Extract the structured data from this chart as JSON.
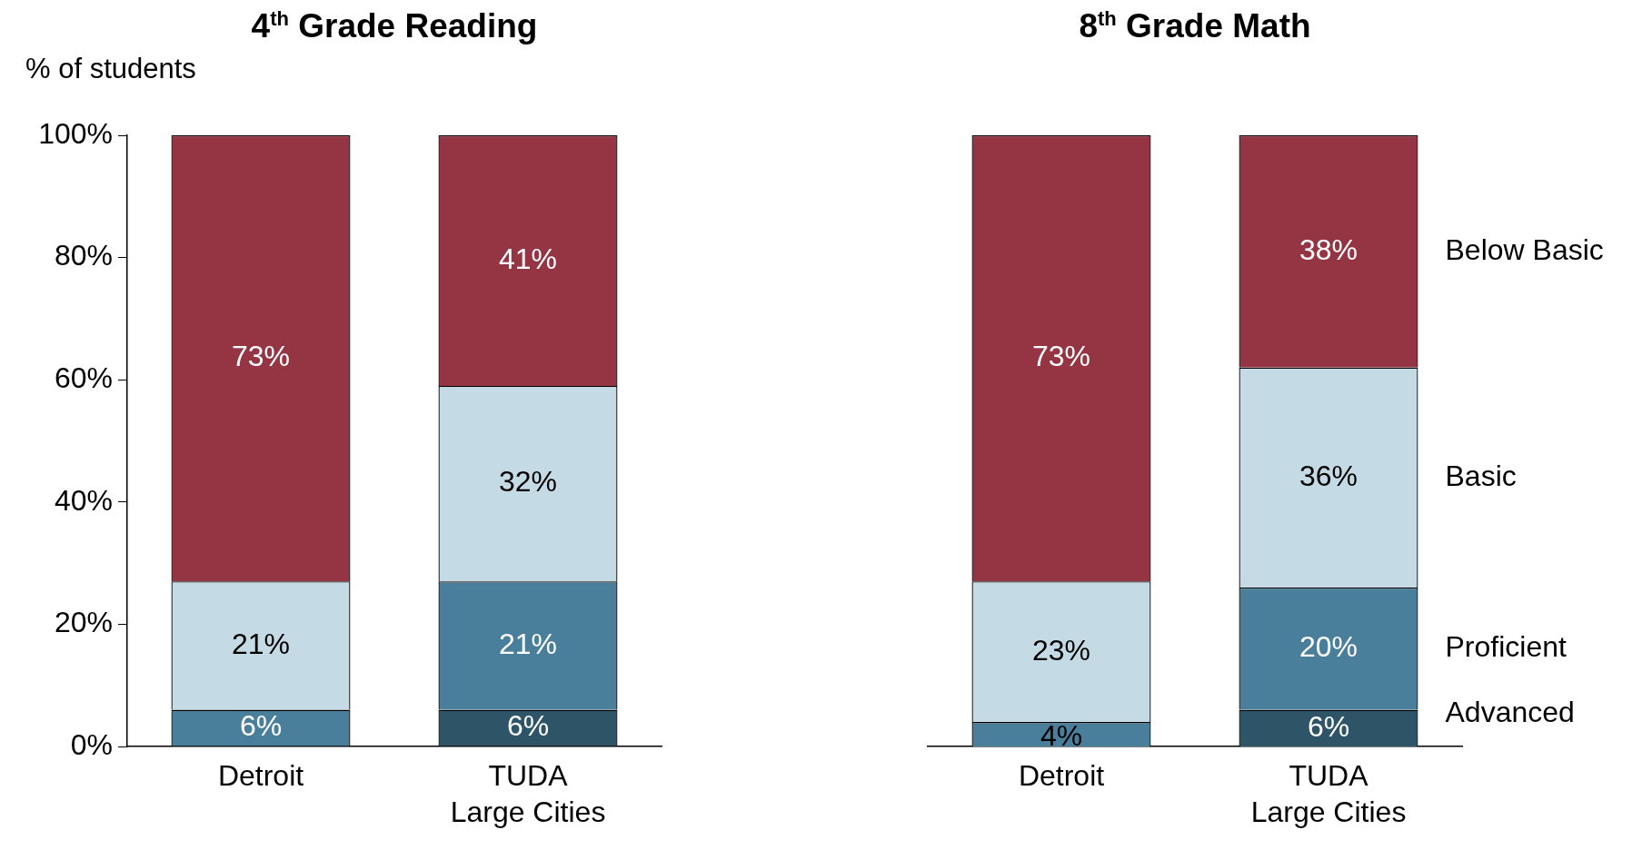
{
  "chart_data": [
    {
      "type": "bar",
      "title": "4$^{th}$ Grade Reading",
      "ylabel": "% of students",
      "categories": [
        "Detroit",
        "TUDA\nLarge Cities"
      ],
      "stacked": true,
      "grid": false,
      "ylim": [
        0,
        100
      ],
      "yticks": [
        {
          "value": 0,
          "label": "0%"
        },
        {
          "value": 20,
          "label": "20%"
        },
        {
          "value": 40,
          "label": "40%"
        },
        {
          "value": 60,
          "label": "60%"
        },
        {
          "value": 80,
          "label": "80%"
        },
        {
          "value": 100,
          "label": "100%"
        }
      ],
      "series": [
        {
          "color": "#2e5468",
          "values": [
            null,
            6
          ],
          "value_labels": [
            null,
            "6%"
          ]
        },
        {
          "color": "#4a7f9c",
          "values": [
            6,
            21
          ],
          "value_labels": [
            "6%",
            "21%"
          ]
        },
        {
          "color": "#c4dbe5",
          "values": [
            21,
            32
          ],
          "value_labels": [
            "21%",
            "32%"
          ]
        },
        {
          "color": "#953544",
          "values": [
            73,
            41
          ],
          "value_labels": [
            "73%",
            "41%"
          ]
        }
      ]
    },
    {
      "type": "bar",
      "title": "8$^{th}$ Grade Math",
      "categories": [
        "Detroit",
        "TUDA\nLarge Cities"
      ],
      "stacked": true,
      "grid": false,
      "tick_labels": "x",
      "ylim": [
        0,
        100
      ],
      "series": [
        {
          "name": "Advanced",
          "color": "#2e5468",
          "values": [
            null,
            6
          ],
          "value_labels": [
            null,
            "6%"
          ]
        },
        {
          "name": "Proficient",
          "color": "#4a7f9c",
          "values": [
            4,
            20
          ],
          "value_labels": [
            "4%",
            "20%"
          ]
        },
        {
          "name": "Basic",
          "color": "#c4dbe5",
          "values": [
            23,
            36
          ],
          "value_labels": [
            "23%",
            "36%"
          ]
        },
        {
          "name": "Below Basic",
          "color": "#953544",
          "values": [
            73,
            38
          ],
          "value_labels": [
            "73%",
            "38%"
          ]
        }
      ]
    }
  ]
}
